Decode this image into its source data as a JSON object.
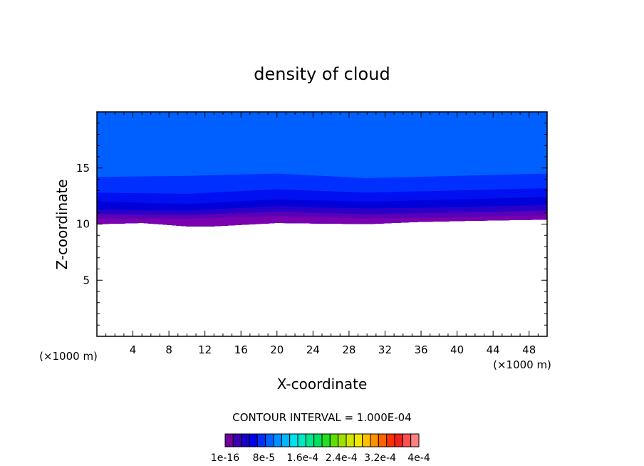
{
  "chart_data": {
    "type": "heatmap",
    "title": "density of cloud",
    "xlabel": "X-coordinate",
    "ylabel": "Z-coordinate",
    "x_unit_left": "(×1000 m)",
    "x_unit_right": "(×1000 m)",
    "xlim": [
      0,
      50
    ],
    "ylim": [
      0,
      20
    ],
    "x_ticks": [
      4,
      8,
      12,
      16,
      20,
      24,
      28,
      32,
      36,
      40,
      44,
      48
    ],
    "y_ticks": [
      5,
      10,
      15
    ],
    "contour_interval_text": "CONTOUR INTERVAL = 1.000E-04",
    "colorbar_labels": [
      "1e-16",
      "8e-5",
      "1.6e-4",
      "2.4e-4",
      "3.2e-4",
      "4e-4"
    ],
    "colorbar_colors": [
      "#7000a0",
      "#3a00b0",
      "#1800c8",
      "#0000e8",
      "#0030ff",
      "#0060ff",
      "#0090ff",
      "#00b8ff",
      "#00e0f0",
      "#00e8c0",
      "#00e890",
      "#00e060",
      "#20e020",
      "#60e000",
      "#a0e000",
      "#d0e800",
      "#f0e800",
      "#ffc000",
      "#ff9000",
      "#ff6000",
      "#ff3000",
      "#f02020",
      "#ff5050",
      "#ff8080"
    ],
    "band_colors": [
      "#7a00b0",
      "#5a00b8",
      "#2a00c8",
      "#0000d8",
      "#0010f0",
      "#0030ff",
      "#0060ff"
    ],
    "band_tops": [
      {
        "x": [
          0,
          10,
          20,
          30,
          40,
          50
        ],
        "z": [
          10.5,
          10.5,
          10.7,
          10.5,
          10.6,
          10.8
        ]
      },
      {
        "x": [
          0,
          10,
          20,
          30,
          40,
          50
        ],
        "z": [
          10.9,
          10.8,
          11.1,
          10.9,
          11.0,
          11.2
        ]
      },
      {
        "x": [
          0,
          10,
          20,
          30,
          40,
          50
        ],
        "z": [
          11.3,
          11.2,
          11.6,
          11.4,
          11.5,
          11.7
        ]
      },
      {
        "x": [
          0,
          10,
          20,
          30,
          40,
          50
        ],
        "z": [
          12.0,
          11.8,
          12.2,
          12.0,
          12.2,
          12.4
        ]
      },
      {
        "x": [
          0,
          10,
          20,
          30,
          40,
          50
        ],
        "z": [
          12.8,
          12.7,
          13.1,
          12.8,
          13.0,
          13.2
        ]
      },
      {
        "x": [
          0,
          10,
          20,
          30,
          40,
          50
        ],
        "z": [
          14.2,
          14.3,
          14.5,
          14.1,
          14.3,
          14.5
        ]
      },
      {
        "x": [
          0,
          50
        ],
        "z": [
          20,
          20
        ]
      }
    ],
    "cloud_base": {
      "x": [
        0,
        5,
        10,
        13,
        20,
        30,
        36,
        42,
        50
      ],
      "z": [
        10.0,
        10.1,
        9.8,
        9.8,
        10.1,
        10.0,
        10.2,
        10.3,
        10.4
      ]
    }
  }
}
